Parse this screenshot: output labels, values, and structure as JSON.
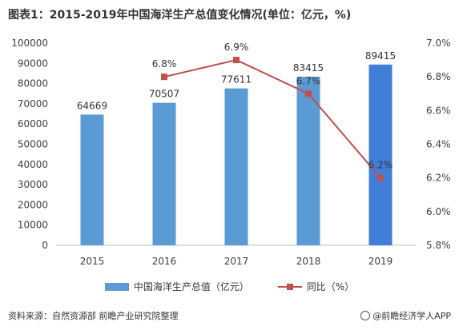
{
  "title": "图表1：2015-2019年中国海洋生产总值变化情况(单位：亿元，%)",
  "source": "资料来源：自然资源部 前瞻产业研究院整理",
  "brand": "@前瞻经济学人APP",
  "colors": {
    "bar": "#5b9bd5",
    "bar_highlight": "#3f7fd8",
    "line": "#c0504d"
  },
  "chart_data": {
    "type": "bar",
    "categories": [
      "2015",
      "2016",
      "2017",
      "2018",
      "2019"
    ],
    "series": [
      {
        "name": "中国海洋生产总值（亿元）",
        "type": "bar",
        "axis": "left",
        "values": [
          64669,
          70507,
          77611,
          83415,
          89415
        ],
        "labels": [
          "64669",
          "70507",
          "77611",
          "83415",
          "89415"
        ]
      },
      {
        "name": "同比（%）",
        "type": "line",
        "axis": "right",
        "values": [
          null,
          6.8,
          6.9,
          6.7,
          6.2
        ],
        "labels": [
          "",
          "6.8%",
          "6.9%",
          "6.7%",
          "6.2%"
        ]
      }
    ],
    "y_left": {
      "min": 0,
      "max": 100000,
      "ticks": [
        "0",
        "10000",
        "20000",
        "30000",
        "40000",
        "50000",
        "60000",
        "70000",
        "80000",
        "90000",
        "100000"
      ]
    },
    "y_right": {
      "min": 5.8,
      "max": 7.0,
      "ticks": [
        "5.8%",
        "6.0%",
        "6.2%",
        "6.4%",
        "6.6%",
        "6.8%",
        "7.0%"
      ]
    },
    "grid": false,
    "legend": "bottom"
  }
}
